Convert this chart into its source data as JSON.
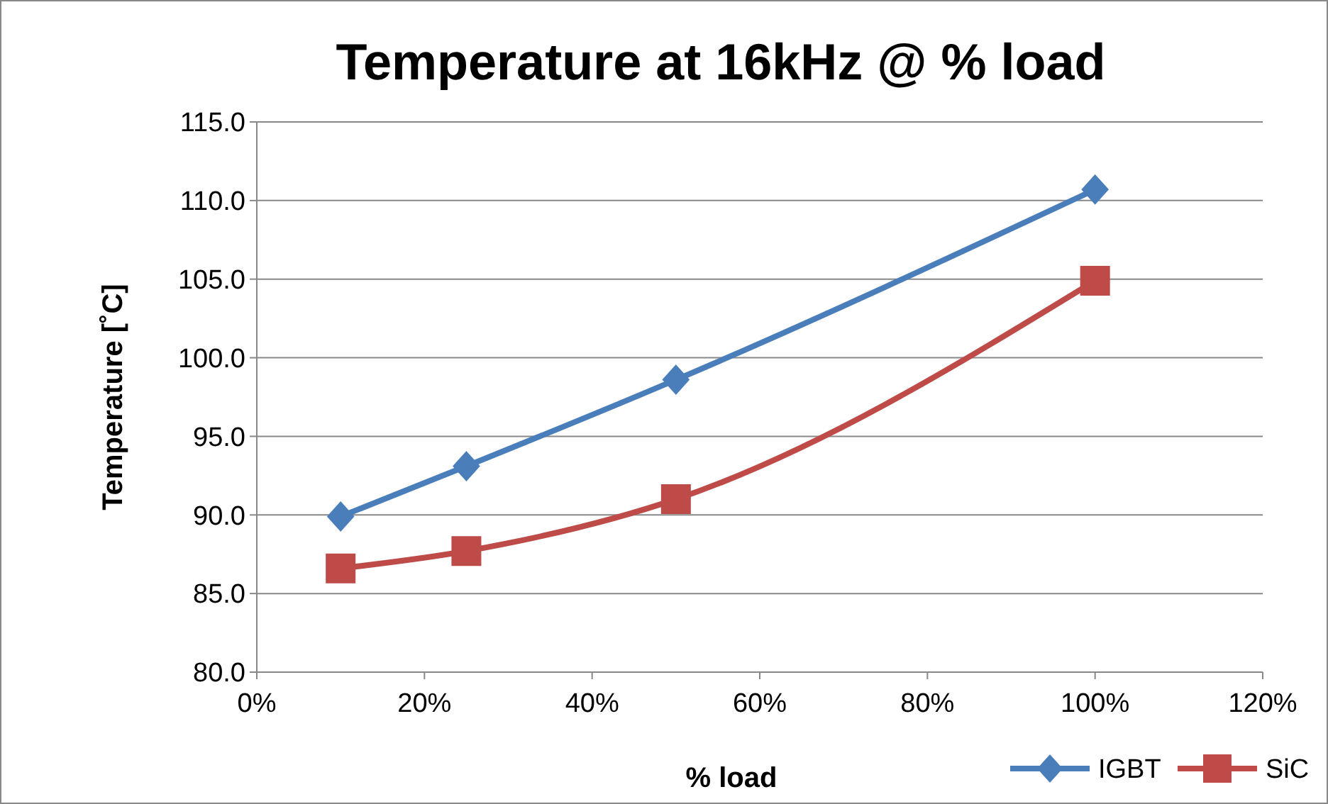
{
  "chart_data": {
    "type": "line",
    "title": "Temperature at 16kHz @ % load",
    "xlabel": "% load",
    "ylabel": "Temperature [˚C]",
    "x": [
      10,
      25,
      50,
      100
    ],
    "series": [
      {
        "name": "IGBT",
        "color": "#4a7ebb",
        "values": [
          89.9,
          93.1,
          98.6,
          110.7
        ],
        "marker": "diamond"
      },
      {
        "name": "SiC",
        "color": "#be4b48",
        "values": [
          86.6,
          87.7,
          91.0,
          104.9
        ],
        "marker": "square"
      }
    ],
    "xlim": [
      0,
      120
    ],
    "xticks": [
      {
        "value": 0,
        "label": "0%"
      },
      {
        "value": 20,
        "label": "20%"
      },
      {
        "value": 40,
        "label": "40%"
      },
      {
        "value": 60,
        "label": "60%"
      },
      {
        "value": 80,
        "label": "80%"
      },
      {
        "value": 100,
        "label": "100%"
      },
      {
        "value": 120,
        "label": "120%"
      }
    ],
    "ylim": [
      80,
      115
    ],
    "yticks": [
      {
        "value": 80,
        "label": "80.0"
      },
      {
        "value": 85,
        "label": "85.0"
      },
      {
        "value": 90,
        "label": "90.0"
      },
      {
        "value": 95,
        "label": "95.0"
      },
      {
        "value": 100,
        "label": "100.0"
      },
      {
        "value": 105,
        "label": "105.0"
      },
      {
        "value": 110,
        "label": "110.0"
      },
      {
        "value": 115,
        "label": "115.0"
      }
    ],
    "grid": "y",
    "legend": "bottom right",
    "line_style": "solid"
  }
}
